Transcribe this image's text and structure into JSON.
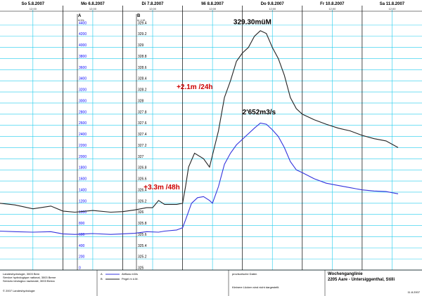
{
  "chart_data": {
    "type": "line",
    "days": [
      {
        "label": "So  5.8.2007",
        "noon": "12:00"
      },
      {
        "label": "Mo  6.8.2007",
        "noon": "12:00"
      },
      {
        "label": "Di  7.8.2007",
        "noon": "12:00"
      },
      {
        "label": "Mi  8.8.2007",
        "noon": "12:00"
      },
      {
        "label": "Do  9.8.2007",
        "noon": "12:00"
      },
      {
        "label": "Fr  10.8.2007",
        "noon": "12:00"
      },
      {
        "label": "Sa  11.8.2007",
        "noon": "12:00"
      }
    ],
    "axis_a": {
      "letter": "A",
      "unit": "m3/s",
      "ylim": [
        0,
        4600
      ],
      "ticks": [
        "0",
        "200",
        "400",
        "600",
        "800",
        "1000",
        "1200",
        "1400",
        "1600",
        "1800",
        "2000",
        "2200",
        "2400",
        "2600",
        "2800",
        "3000",
        "3200",
        "3400",
        "3600",
        "3800",
        "4000",
        "4200",
        "4400"
      ]
    },
    "axis_b": {
      "letter": "B",
      "unit": "m ü.M.",
      "ylim": [
        325,
        329.6
      ],
      "ticks": [
        "325",
        "325.2",
        "325.4",
        "325.6",
        "325.8",
        "326",
        "326.2",
        "326.4",
        "326.6",
        "326.8",
        "327",
        "327.2",
        "327.4",
        "327.6",
        "327.8",
        "328",
        "328.2",
        "328.4",
        "328.6",
        "328.8",
        "329",
        "329.2",
        "329.4"
      ]
    },
    "x_unit": "days since Sunday 5.8.2007 00:00",
    "xlim": [
      -0.05,
      7.0
    ],
    "series": [
      {
        "name": "Abfluss m3/s",
        "axis": "A",
        "color": "#3333dd",
        "points": [
          [
            -0.05,
            700
          ],
          [
            0.2,
            690
          ],
          [
            0.5,
            680
          ],
          [
            0.8,
            690
          ],
          [
            1.0,
            650
          ],
          [
            1.2,
            640
          ],
          [
            1.5,
            655
          ],
          [
            1.8,
            640
          ],
          [
            2.0,
            650
          ],
          [
            2.2,
            660
          ],
          [
            2.4,
            690
          ],
          [
            2.6,
            680
          ],
          [
            2.7,
            700
          ],
          [
            2.9,
            720
          ],
          [
            3.0,
            760
          ],
          [
            3.05,
            900
          ],
          [
            3.15,
            1200
          ],
          [
            3.25,
            1300
          ],
          [
            3.35,
            1320
          ],
          [
            3.45,
            1250
          ],
          [
            3.5,
            1200
          ],
          [
            3.6,
            1500
          ],
          [
            3.7,
            1900
          ],
          [
            3.8,
            2100
          ],
          [
            3.9,
            2250
          ],
          [
            4.0,
            2350
          ],
          [
            4.1,
            2450
          ],
          [
            4.2,
            2550
          ],
          [
            4.3,
            2640
          ],
          [
            4.4,
            2620
          ],
          [
            4.5,
            2520
          ],
          [
            4.6,
            2400
          ],
          [
            4.7,
            2200
          ],
          [
            4.8,
            1950
          ],
          [
            4.9,
            1800
          ],
          [
            5.0,
            1750
          ],
          [
            5.2,
            1640
          ],
          [
            5.4,
            1560
          ],
          [
            5.6,
            1520
          ],
          [
            5.8,
            1480
          ],
          [
            6.0,
            1440
          ],
          [
            6.2,
            1420
          ],
          [
            6.4,
            1410
          ],
          [
            6.6,
            1370
          ]
        ]
      },
      {
        "name": "Pegel m ü.M.",
        "axis": "B",
        "color": "#222222",
        "points": [
          [
            -0.05,
            326.2
          ],
          [
            0.2,
            326.17
          ],
          [
            0.5,
            326.1
          ],
          [
            0.8,
            326.15
          ],
          [
            1.0,
            326.06
          ],
          [
            1.2,
            326.04
          ],
          [
            1.5,
            326.07
          ],
          [
            1.8,
            326.04
          ],
          [
            2.0,
            326.05
          ],
          [
            2.2,
            326.08
          ],
          [
            2.4,
            326.12
          ],
          [
            2.5,
            326.12
          ],
          [
            2.6,
            326.25
          ],
          [
            2.7,
            326.18
          ],
          [
            2.9,
            326.18
          ],
          [
            3.0,
            326.2
          ],
          [
            3.05,
            326.5
          ],
          [
            3.1,
            326.85
          ],
          [
            3.2,
            327.1
          ],
          [
            3.35,
            327.0
          ],
          [
            3.45,
            326.85
          ],
          [
            3.6,
            327.5
          ],
          [
            3.7,
            328.1
          ],
          [
            3.8,
            328.4
          ],
          [
            3.9,
            328.75
          ],
          [
            4.0,
            328.9
          ],
          [
            4.1,
            329.0
          ],
          [
            4.2,
            329.2
          ],
          [
            4.3,
            329.3
          ],
          [
            4.4,
            329.25
          ],
          [
            4.5,
            329.0
          ],
          [
            4.6,
            328.8
          ],
          [
            4.7,
            328.5
          ],
          [
            4.8,
            328.1
          ],
          [
            4.9,
            327.9
          ],
          [
            5.0,
            327.8
          ],
          [
            5.2,
            327.7
          ],
          [
            5.4,
            327.62
          ],
          [
            5.6,
            327.55
          ],
          [
            5.8,
            327.5
          ],
          [
            6.0,
            327.42
          ],
          [
            6.2,
            327.36
          ],
          [
            6.4,
            327.32
          ],
          [
            6.6,
            327.2
          ]
        ]
      }
    ],
    "annotations": [
      {
        "text": "329.30müM",
        "color": "black",
        "x": 3.85,
        "axis": "A",
        "y": 4420
      },
      {
        "text": "+2.1m /24h",
        "color": "red",
        "x": 2.9,
        "axis": "A",
        "y": 3250
      },
      {
        "text": "2'652m3/s",
        "color": "black",
        "x": 4.0,
        "axis": "A",
        "y": 2800
      },
      {
        "text": "+3.3m /48h",
        "color": "red",
        "x": 2.35,
        "axis": "A",
        "y": 1450
      }
    ],
    "grid": true
  },
  "footer": {
    "left_lines": [
      "Landeshydrologie, 3003 Bern",
      "Service hydrologique national, 3003 Berne",
      "Servizio idrologico nazionale, 3003 Berna"
    ],
    "copyright": "© 2007 Landeshydrologie",
    "legend": [
      {
        "letter": "A",
        "name": "Abfluss m3/s",
        "color": "#3333dd"
      },
      {
        "letter": "B",
        "name": "Pegel m ü.M.",
        "color": "#222222"
      }
    ],
    "provisional": "provisorische Daten",
    "gaps_note": "Kleinere Lücken sind nicht dargestellt.",
    "title": "Wochenganglinie",
    "station": "2205 Aare - Untersiggenthal, Stilli",
    "date": "11.8.2007"
  }
}
